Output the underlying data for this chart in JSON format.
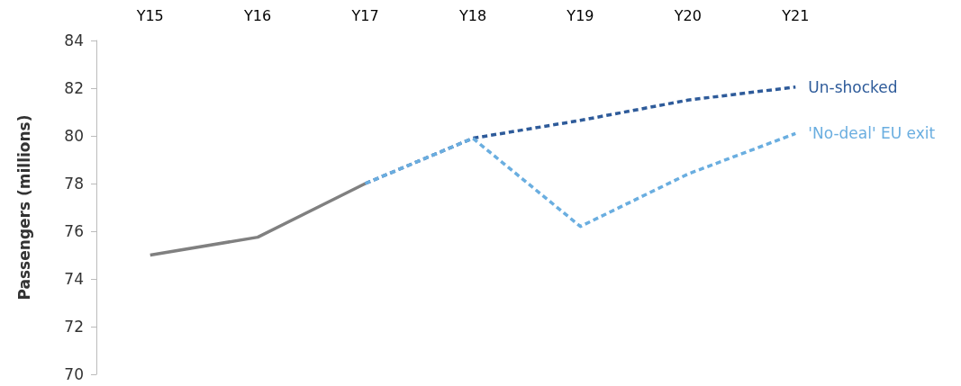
{
  "chart_data": {
    "type": "line",
    "ylabel": "Passengers (millions)",
    "categories": [
      "Y15",
      "Y16",
      "Y17",
      "Y18",
      "Y19",
      "Y20",
      "Y21"
    ],
    "series": [
      {
        "color": "#808080",
        "line_style": "solid",
        "values": [
          75.0,
          75.75,
          78.0,
          null,
          null,
          null,
          null
        ]
      },
      {
        "name": "Un-shocked",
        "color": "#2e5b9a",
        "line_style": "dashed",
        "values": [
          null,
          null,
          78.0,
          79.9,
          80.65,
          81.5,
          82.05
        ]
      },
      {
        "name": "'No-deal' EU exit",
        "color": "#6aaee0",
        "line_style": "dashed",
        "values": [
          null,
          null,
          78.0,
          79.9,
          76.2,
          78.4,
          80.1
        ]
      }
    ],
    "ylim": [
      70,
      84
    ],
    "yticks": [
      70,
      72,
      74,
      76,
      78,
      80,
      82,
      84
    ],
    "grid": false,
    "legend": false,
    "marker": "none"
  }
}
